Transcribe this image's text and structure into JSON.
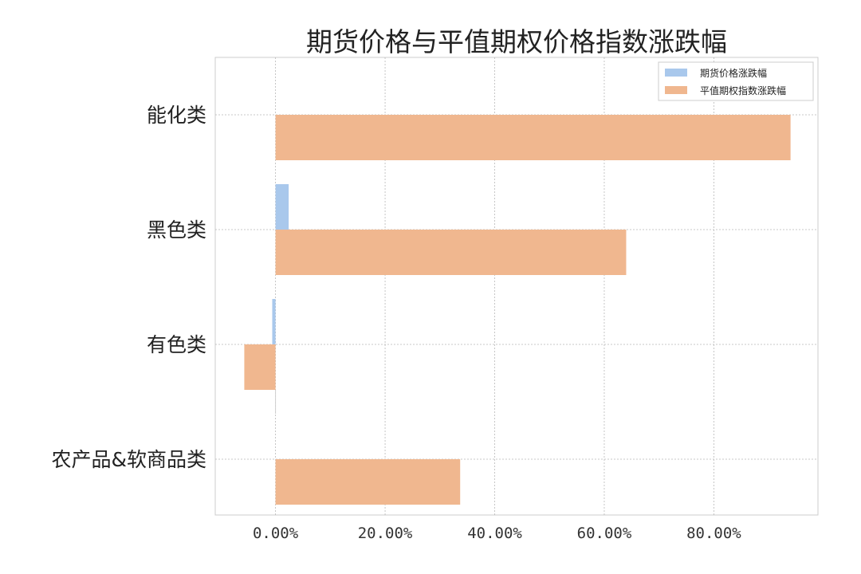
{
  "chart_data": {
    "type": "bar",
    "orientation": "horizontal",
    "title": "期货价格与平值期权价格指数涨跌幅",
    "categories": [
      "能化类",
      "黑色类",
      "有色类",
      "农产品&软商品类"
    ],
    "series": [
      {
        "name": "期货价格涨跌幅",
        "color": "#a9c8ec",
        "values": [
          0.0,
          2.4,
          -0.6,
          0.0
        ]
      },
      {
        "name": "平值期权指数涨跌幅",
        "color": "#f0b78f",
        "values": [
          94.0,
          64.0,
          -5.7,
          33.7
        ]
      }
    ],
    "xlim": [
      -11.0,
      99.0
    ],
    "xticks": [
      0,
      20,
      40,
      60,
      80
    ],
    "xtick_labels": [
      "0.00%",
      "20.00%",
      "40.00%",
      "60.00%",
      "80.00%"
    ],
    "value_unit": "percent",
    "grid": true,
    "legend_position": "upper-right"
  }
}
